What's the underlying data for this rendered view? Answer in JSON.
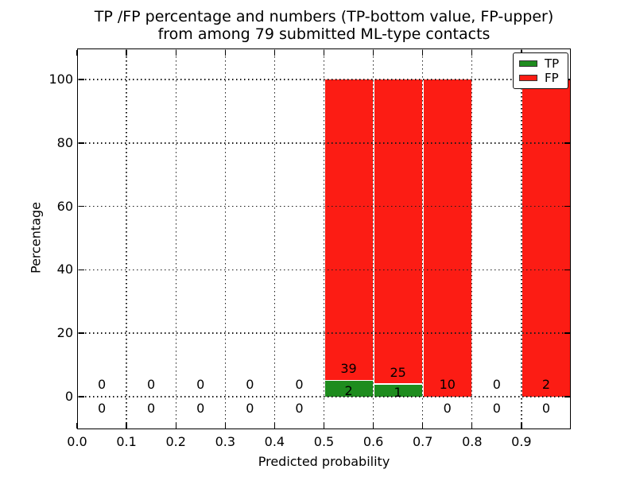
{
  "chart_data": {
    "type": "bar",
    "stacked": true,
    "title": "TP /FP percentage and numbers (TP-bottom value, FP-upper) from among 79 submitted ML-type contacts",
    "title_line1": "TP /FP percentage and numbers (TP-bottom value, FP-upper)",
    "title_line2": "from among 79 submitted ML-type contacts",
    "xlabel": "Predicted probability",
    "ylabel": "Percentage",
    "total_contacts": 79,
    "bin_width": 0.1,
    "xlim": [
      0.0,
      1.0
    ],
    "ylim": [
      -10.3,
      109.8
    ],
    "xticks": [
      "0.0",
      "0.1",
      "0.2",
      "0.3",
      "0.4",
      "0.5",
      "0.6",
      "0.7",
      "0.8",
      "0.9"
    ],
    "yticks": [
      "0",
      "20",
      "40",
      "60",
      "80",
      "100"
    ],
    "grid": "dotted, drawn above bars",
    "legend_position": "upper right",
    "note": "bars show TP/FP percentage within each probability bin; labels are raw counts (TP bottom value, FP upper)",
    "bins": [
      {
        "x_start": 0.0,
        "tp_count": 0,
        "fp_count": 0
      },
      {
        "x_start": 0.1,
        "tp_count": 0,
        "fp_count": 0
      },
      {
        "x_start": 0.2,
        "tp_count": 0,
        "fp_count": 0
      },
      {
        "x_start": 0.3,
        "tp_count": 0,
        "fp_count": 0
      },
      {
        "x_start": 0.4,
        "tp_count": 0,
        "fp_count": 0
      },
      {
        "x_start": 0.5,
        "tp_count": 2,
        "fp_count": 39
      },
      {
        "x_start": 0.6,
        "tp_count": 1,
        "fp_count": 25
      },
      {
        "x_start": 0.7,
        "tp_count": 0,
        "fp_count": 10
      },
      {
        "x_start": 0.8,
        "tp_count": 0,
        "fp_count": 0
      },
      {
        "x_start": 0.9,
        "tp_count": 0,
        "fp_count": 2
      }
    ],
    "colors": {
      "tp": "#1e8c1e",
      "fp": "#fc1c14",
      "grid": "#1a1a1a",
      "text": "#000000",
      "background": "#ffffff"
    },
    "legend": {
      "items": [
        {
          "label": "TP",
          "color": "#1e8c1e"
        },
        {
          "label": "FP",
          "color": "#fc1c14"
        }
      ]
    }
  }
}
